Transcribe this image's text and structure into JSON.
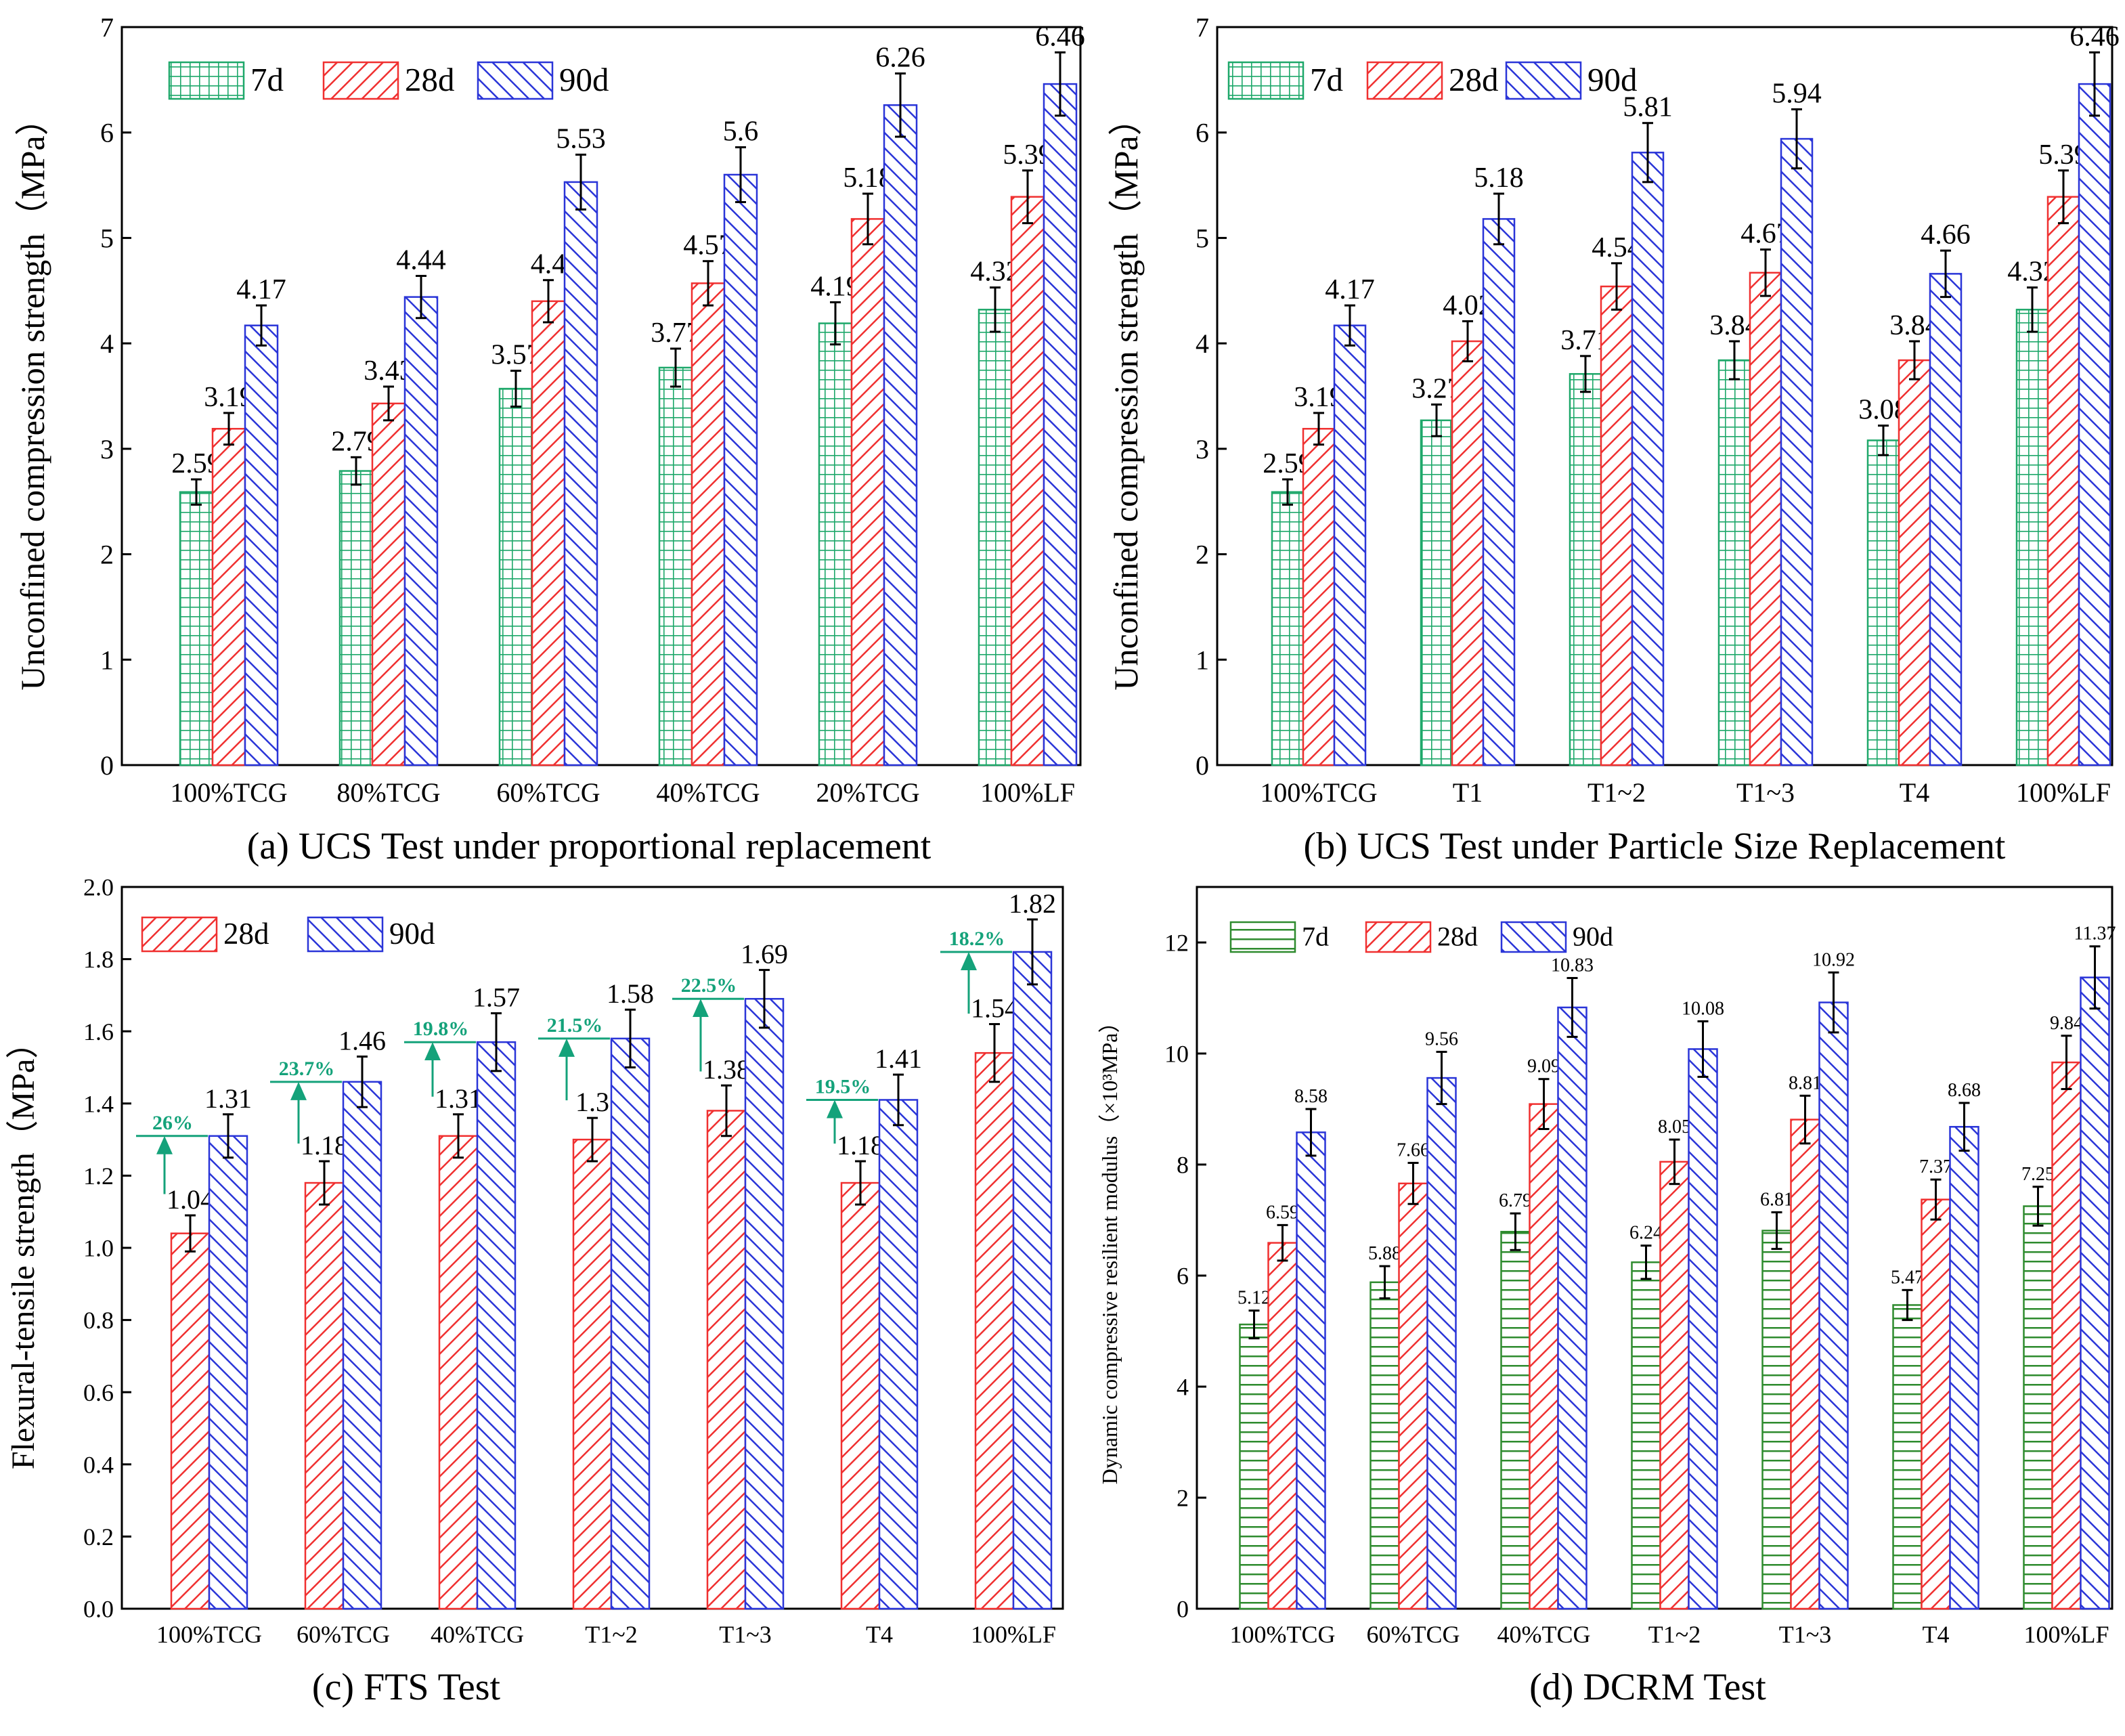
{
  "colors": {
    "7d": "#1ea86a",
    "7d_d": "#2e8b2e",
    "28d": "#f03030",
    "90d": "#2a35d8",
    "ann": "#14a27a"
  },
  "chart_data": [
    {
      "id": "a",
      "type": "bar",
      "caption": "(a) UCS Test under proportional replacement",
      "ylabel": "Unconfined compression strength（MPa）",
      "xlabel": "",
      "ylim": [
        0,
        7
      ],
      "ytick_labels": [
        "0",
        "1",
        "2",
        "3",
        "4",
        "5",
        "6",
        "7"
      ],
      "legend": [
        "7d",
        "28d",
        "90d"
      ],
      "categories": [
        "100%TCG",
        "80%TCG",
        "60%TCG",
        "40%TCG",
        "20%TCG",
        "100%LF"
      ],
      "series": [
        {
          "name": "7d",
          "values": [
            2.59,
            2.79,
            3.57,
            3.77,
            4.19,
            4.32
          ],
          "labels": [
            "2.59",
            "2.79",
            "3.57",
            "3.77",
            "4.19",
            "4.32"
          ],
          "errors": [
            0.12,
            0.13,
            0.17,
            0.18,
            0.2,
            0.21
          ]
        },
        {
          "name": "28d",
          "values": [
            3.19,
            3.43,
            4.4,
            4.57,
            5.18,
            5.39
          ],
          "labels": [
            "3.19",
            "3.43",
            "4.4",
            "4.57",
            "5.18",
            "5.39"
          ],
          "errors": [
            0.15,
            0.16,
            0.2,
            0.21,
            0.24,
            0.25
          ]
        },
        {
          "name": "90d",
          "values": [
            4.17,
            4.44,
            5.53,
            5.6,
            6.26,
            6.46
          ],
          "labels": [
            "4.17",
            "4.44",
            "5.53",
            "5.6",
            "6.26",
            "6.46"
          ],
          "errors": [
            0.19,
            0.2,
            0.26,
            0.26,
            0.3,
            0.3
          ]
        }
      ]
    },
    {
      "id": "b",
      "type": "bar",
      "caption": "(b) UCS Test under Particle Size Replacement",
      "ylabel": "Unconfined compression strength（MPa）",
      "xlabel": "",
      "ylim": [
        0,
        7
      ],
      "ytick_labels": [
        "0",
        "1",
        "2",
        "3",
        "4",
        "5",
        "6",
        "7"
      ],
      "legend": [
        "7d",
        "28d",
        "90d"
      ],
      "categories": [
        "100%TCG",
        "T1",
        "T1~2",
        "T1~3",
        "T4",
        "100%LF"
      ],
      "series": [
        {
          "name": "7d",
          "values": [
            2.59,
            3.27,
            3.71,
            3.84,
            3.08,
            4.32
          ],
          "labels": [
            "2.59",
            "3.27",
            "3.71",
            "3.84",
            "3.08",
            "4.32"
          ],
          "errors": [
            0.12,
            0.15,
            0.17,
            0.18,
            0.14,
            0.21
          ]
        },
        {
          "name": "28d",
          "values": [
            3.19,
            4.02,
            4.54,
            4.67,
            3.84,
            5.39
          ],
          "labels": [
            "3.19",
            "4.02",
            "4.54",
            "4.67",
            "3.84",
            "5.39"
          ],
          "errors": [
            0.15,
            0.19,
            0.22,
            0.22,
            0.18,
            0.25
          ]
        },
        {
          "name": "90d",
          "values": [
            4.17,
            5.18,
            5.81,
            5.94,
            4.66,
            6.46
          ],
          "labels": [
            "4.17",
            "5.18",
            "5.81",
            "5.94",
            "4.66",
            "6.46"
          ],
          "errors": [
            0.19,
            0.24,
            0.28,
            0.28,
            0.22,
            0.3
          ]
        }
      ]
    },
    {
      "id": "c",
      "type": "bar",
      "caption": "(c) FTS Test",
      "ylabel": "Flexural-tensile strength（MPa）",
      "xlabel": "",
      "ylim": [
        0,
        2.0
      ],
      "ytick_labels": [
        "0.0",
        "0.2",
        "0.4",
        "0.6",
        "0.8",
        "1.0",
        "1.2",
        "1.4",
        "1.6",
        "1.8",
        "2.0"
      ],
      "legend": [
        "28d",
        "90d"
      ],
      "categories": [
        "100%TCG",
        "60%TCG",
        "40%TCG",
        "T1~2",
        "T1~3",
        "T4",
        "100%LF"
      ],
      "series": [
        {
          "name": "28d",
          "values": [
            1.04,
            1.18,
            1.31,
            1.3,
            1.38,
            1.18,
            1.54
          ],
          "labels": [
            "1.04",
            "1.18",
            "1.31",
            "1.3",
            "1.38",
            "1.18",
            "1.54"
          ],
          "errors": [
            0.05,
            0.06,
            0.06,
            0.06,
            0.07,
            0.06,
            0.08
          ]
        },
        {
          "name": "90d",
          "values": [
            1.31,
            1.46,
            1.57,
            1.58,
            1.69,
            1.41,
            1.82
          ],
          "labels": [
            "1.31",
            "1.46",
            "1.57",
            "1.58",
            "1.69",
            "1.41",
            "1.82"
          ],
          "errors": [
            0.06,
            0.07,
            0.08,
            0.08,
            0.08,
            0.07,
            0.09
          ]
        }
      ],
      "annotations": [
        {
          "text": "26%",
          "low": 1.04,
          "high": 1.31
        },
        {
          "text": "23.7%",
          "low": 1.18,
          "high": 1.46
        },
        {
          "text": "19.8%",
          "low": 1.31,
          "high": 1.57
        },
        {
          "text": "21.5%",
          "low": 1.3,
          "high": 1.58
        },
        {
          "text": "22.5%",
          "low": 1.38,
          "high": 1.69
        },
        {
          "text": "19.5%",
          "low": 1.18,
          "high": 1.41
        },
        {
          "text": "18.2%",
          "low": 1.54,
          "high": 1.82
        }
      ]
    },
    {
      "id": "d",
      "type": "bar",
      "caption": "(d) DCRM Test",
      "ylabel": "Dynamic compressive resilient modulus（×10³MPa）",
      "xlabel": "",
      "ylim": [
        0,
        13
      ],
      "ytick_labels": [
        "0",
        "2",
        "4",
        "6",
        "8",
        "10",
        "12"
      ],
      "legend": [
        "7d",
        "28d",
        "90d"
      ],
      "categories": [
        "100%TCG",
        "60%TCG",
        "40%TCG",
        "T1~2",
        "T1~3",
        "T4",
        "100%LF"
      ],
      "series": [
        {
          "name": "7d",
          "values": [
            5.12,
            5.88,
            6.79,
            6.24,
            6.81,
            5.47,
            7.25
          ],
          "labels": [
            "5.12",
            "5.88",
            "6.79",
            "6.24",
            "6.81",
            "5.47",
            "7.25"
          ],
          "errors": [
            0.25,
            0.29,
            0.33,
            0.3,
            0.33,
            0.27,
            0.35
          ]
        },
        {
          "name": "28d",
          "values": [
            6.59,
            7.66,
            9.09,
            8.05,
            8.81,
            7.37,
            9.84
          ],
          "labels": [
            "6.59",
            "7.66",
            "9.09",
            "8.05",
            "8.81",
            "7.37",
            "9.84"
          ],
          "errors": [
            0.32,
            0.37,
            0.45,
            0.4,
            0.43,
            0.36,
            0.48
          ]
        },
        {
          "name": "90d",
          "values": [
            8.58,
            9.56,
            10.83,
            10.08,
            10.92,
            8.68,
            11.37
          ],
          "labels": [
            "8.58",
            "9.56",
            "10.83",
            "10.08",
            "10.92",
            "8.68",
            "11.37"
          ],
          "errors": [
            0.42,
            0.47,
            0.53,
            0.5,
            0.54,
            0.43,
            0.56
          ]
        }
      ]
    }
  ]
}
